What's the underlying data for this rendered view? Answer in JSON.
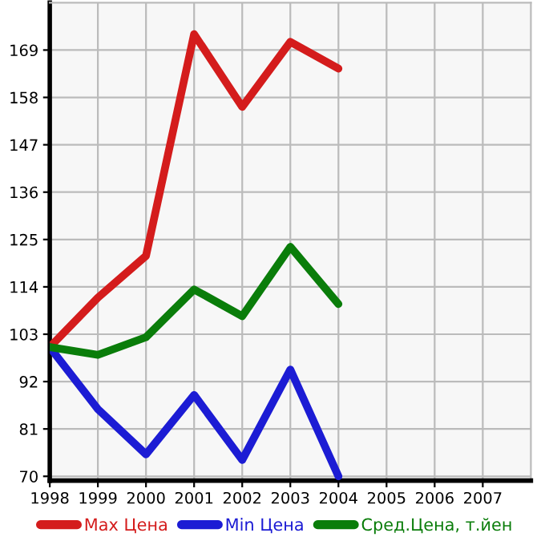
{
  "chart_data": {
    "type": "line",
    "x": [
      1998,
      1999,
      2000,
      2001,
      2002,
      2003,
      2004
    ],
    "series": [
      {
        "name": "Max Цена",
        "color": "#d41c1c",
        "values": [
          100,
          111.5,
          121.2,
          172.7,
          155.8,
          170.9,
          164.7
        ]
      },
      {
        "name": "Min Цена",
        "color": "#1c1cd4",
        "values": [
          100,
          85.6,
          75.1,
          88.9,
          73.8,
          94.8,
          70
        ]
      },
      {
        "name": "Сред.Цена, т.йен",
        "color": "#0a7d0a",
        "values": [
          100,
          98.2,
          102.3,
          113.4,
          107.2,
          123.3,
          110
        ]
      }
    ],
    "xlim": [
      1998,
      2008
    ],
    "xticks": [
      1998,
      1999,
      2000,
      2001,
      2002,
      2003,
      2004,
      2005,
      2006,
      2007
    ],
    "ylim": [
      69,
      180
    ],
    "yticks": [
      70,
      81,
      92,
      103,
      114,
      125,
      136,
      147,
      158,
      169
    ],
    "grid": true,
    "legend": "bottom",
    "marker": "none",
    "line_style": "solid"
  }
}
